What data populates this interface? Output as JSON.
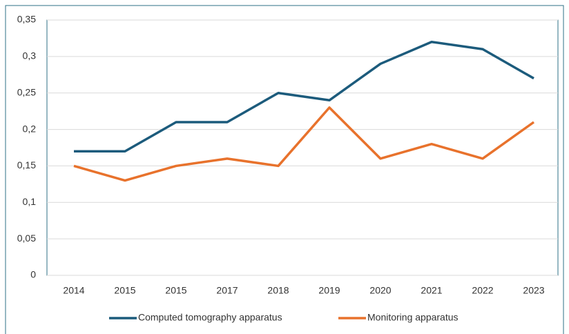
{
  "chart_data": {
    "type": "line",
    "categories": [
      "2014",
      "2015",
      "2015",
      "2017",
      "2018",
      "2019",
      "2020",
      "2021",
      "2022",
      "2023"
    ],
    "series": [
      {
        "name": "Computed tomography apparatus",
        "color": "#1c5b7c",
        "values": [
          0.17,
          0.17,
          0.21,
          0.21,
          0.25,
          0.24,
          0.29,
          0.32,
          0.31,
          0.27
        ]
      },
      {
        "name": "Monitoring apparatus",
        "color": "#e8722c",
        "values": [
          0.15,
          0.13,
          0.15,
          0.16,
          0.15,
          0.23,
          0.16,
          0.18,
          0.16,
          0.21
        ]
      }
    ],
    "ylim": [
      0,
      0.35
    ],
    "yticks": [
      0,
      {
        "value": 0.05,
        "label": "0,05"
      },
      {
        "value": 0.1,
        "label": "0,1"
      },
      {
        "value": 0.15,
        "label": "0,15"
      },
      {
        "value": 0.2,
        "label": "0,2"
      },
      {
        "value": 0.25,
        "label": "0,25"
      },
      {
        "value": 0.3,
        "label": "0,3"
      },
      {
        "value": 0.35,
        "label": "0,35"
      }
    ],
    "grid": true,
    "legend": "bottom"
  }
}
